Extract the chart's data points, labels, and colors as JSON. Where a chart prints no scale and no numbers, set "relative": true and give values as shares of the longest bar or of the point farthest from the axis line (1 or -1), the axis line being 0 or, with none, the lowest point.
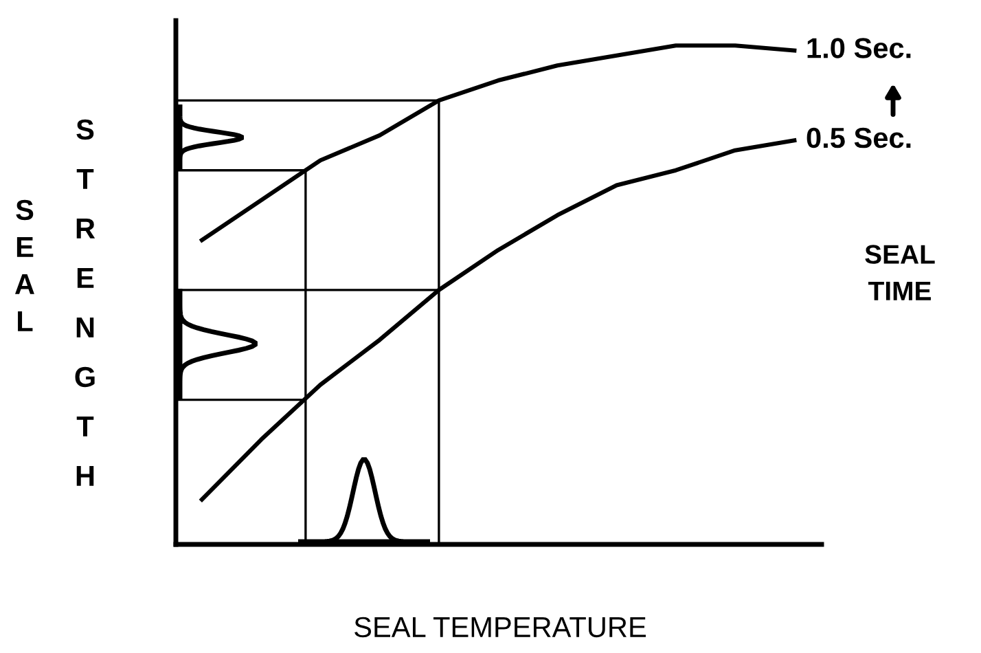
{
  "chart_data": {
    "type": "line",
    "relative": true,
    "xlabel": "SEAL TEMPERATURE",
    "ylabel": "SEAL STRENGTH",
    "categories": [
      null,
      null,
      null,
      null,
      null,
      null,
      null,
      null,
      null,
      null,
      null
    ],
    "series": [
      {
        "name": "1.0 Sec.",
        "color": "#000000",
        "values": [
          0.61,
          0.69,
          0.77,
          0.82,
          0.89,
          0.93,
          0.96,
          0.98,
          1.0,
          1.0,
          0.99
        ]
      },
      {
        "name": "0.5 Sec.",
        "color": "#000000",
        "values": [
          0.09,
          0.21,
          0.32,
          0.41,
          0.51,
          0.59,
          0.66,
          0.72,
          0.75,
          0.79,
          0.81
        ]
      }
    ],
    "annotations": [
      "SEAL TIME"
    ],
    "ref_lines": [
      {
        "axis": "y",
        "value": 0.89,
        "color": "#000000"
      },
      {
        "axis": "y",
        "value": 0.75,
        "color": "#000000"
      },
      {
        "axis": "y",
        "value": 0.51,
        "color": "#000000"
      },
      {
        "axis": "y",
        "value": 0.29,
        "color": "#000000"
      }
    ],
    "grid": false,
    "legend": "right",
    "marker": "none",
    "line_style": "solid"
  }
}
